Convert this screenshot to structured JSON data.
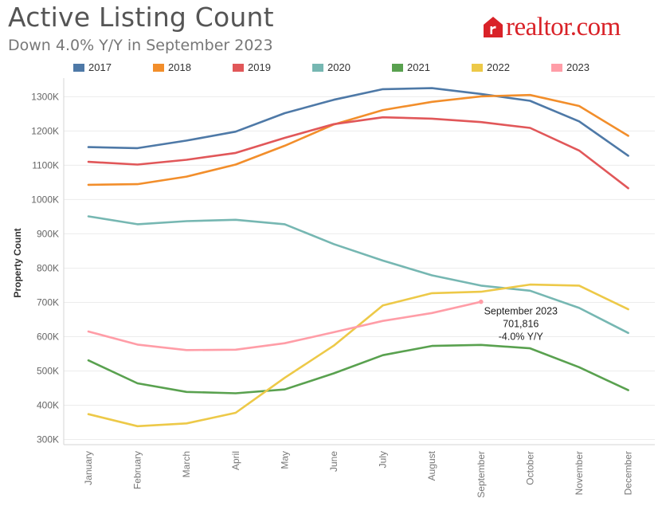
{
  "header": {
    "title": "Active Listing Count",
    "subtitle": "Down 4.0% Y/Y in September 2023",
    "logo_text": "realtor.com"
  },
  "colors": {
    "brand": "#d92228"
  },
  "chart_data": {
    "type": "line",
    "ylabel": "Property Count",
    "xlabel": "",
    "categories": [
      "January",
      "February",
      "March",
      "April",
      "May",
      "June",
      "July",
      "August",
      "September",
      "October",
      "November",
      "December"
    ],
    "yticks": [
      300000,
      400000,
      500000,
      600000,
      700000,
      800000,
      900000,
      1000000,
      1100000,
      1200000,
      1300000
    ],
    "ytick_labels": [
      "300K",
      "400K",
      "500K",
      "600K",
      "700K",
      "800K",
      "900K",
      "1000K",
      "1100K",
      "1200K",
      "1300K"
    ],
    "ylim": [
      285000,
      1345000
    ],
    "grid": true,
    "legend_position": "top",
    "series": [
      {
        "name": "2017",
        "color": "#4e79a7",
        "values": [
          1153000,
          1150000,
          1172000,
          1198000,
          1252000,
          1291000,
          1322000,
          1325000,
          1308000,
          1288000,
          1228000,
          1128000
        ]
      },
      {
        "name": "2018",
        "color": "#f28e2b",
        "values": [
          1043000,
          1045000,
          1067000,
          1102000,
          1157000,
          1219000,
          1261000,
          1285000,
          1301000,
          1305000,
          1273000,
          1186000
        ]
      },
      {
        "name": "2019",
        "color": "#e15759",
        "values": [
          1110000,
          1102000,
          1116000,
          1136000,
          1180000,
          1220000,
          1240000,
          1236000,
          1226000,
          1209000,
          1143000,
          1033000
        ]
      },
      {
        "name": "2020",
        "color": "#76b7b2",
        "values": [
          951000,
          928000,
          937000,
          941000,
          928000,
          870000,
          822000,
          779000,
          749000,
          734000,
          684000,
          611000
        ]
      },
      {
        "name": "2021",
        "color": "#59a14f",
        "values": [
          531000,
          464000,
          439000,
          435000,
          446000,
          493000,
          546000,
          573000,
          576000,
          566000,
          511000,
          444000
        ]
      },
      {
        "name": "2022",
        "color": "#edc948",
        "values": [
          374000,
          339000,
          347000,
          378000,
          480000,
          574000,
          691000,
          727000,
          731000,
          752000,
          749000,
          680000
        ]
      },
      {
        "name": "2023",
        "color": "#ff9da7",
        "values": [
          615000,
          577000,
          561000,
          562000,
          581000,
          613000,
          646000,
          669000,
          701816,
          null,
          null,
          null
        ]
      }
    ],
    "annotation": {
      "category": "September",
      "value": 701816,
      "lines": [
        "September 2023",
        "701,816",
        "-4.0% Y/Y"
      ]
    }
  }
}
